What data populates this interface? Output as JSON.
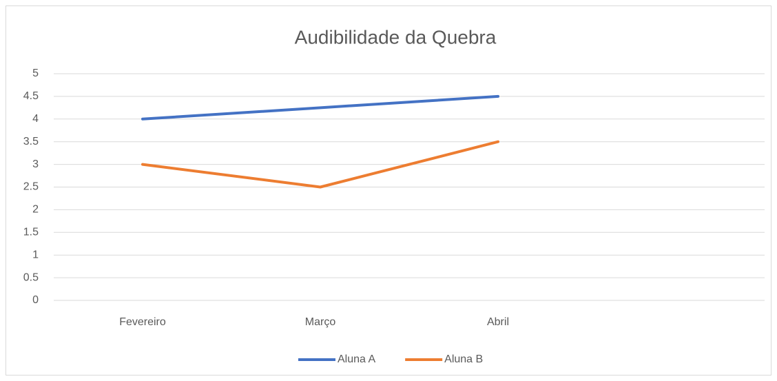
{
  "chart_data": {
    "type": "line",
    "title": "Audibilidade da Quebra",
    "categories": [
      "Fevereiro",
      "Março",
      "Abril",
      null
    ],
    "series": [
      {
        "name": "Aluna A",
        "color": "#4472c4",
        "values": [
          4,
          4.25,
          4.5,
          null
        ]
      },
      {
        "name": "Aluna B",
        "color": "#ed7d31",
        "values": [
          3,
          2.5,
          3.5,
          null
        ]
      }
    ],
    "ylim": [
      0,
      5
    ],
    "yticks": [
      0,
      0.5,
      1,
      1.5,
      2,
      2.5,
      3,
      3.5,
      4,
      4.5,
      5
    ],
    "grid": true,
    "legend": "bottom"
  }
}
